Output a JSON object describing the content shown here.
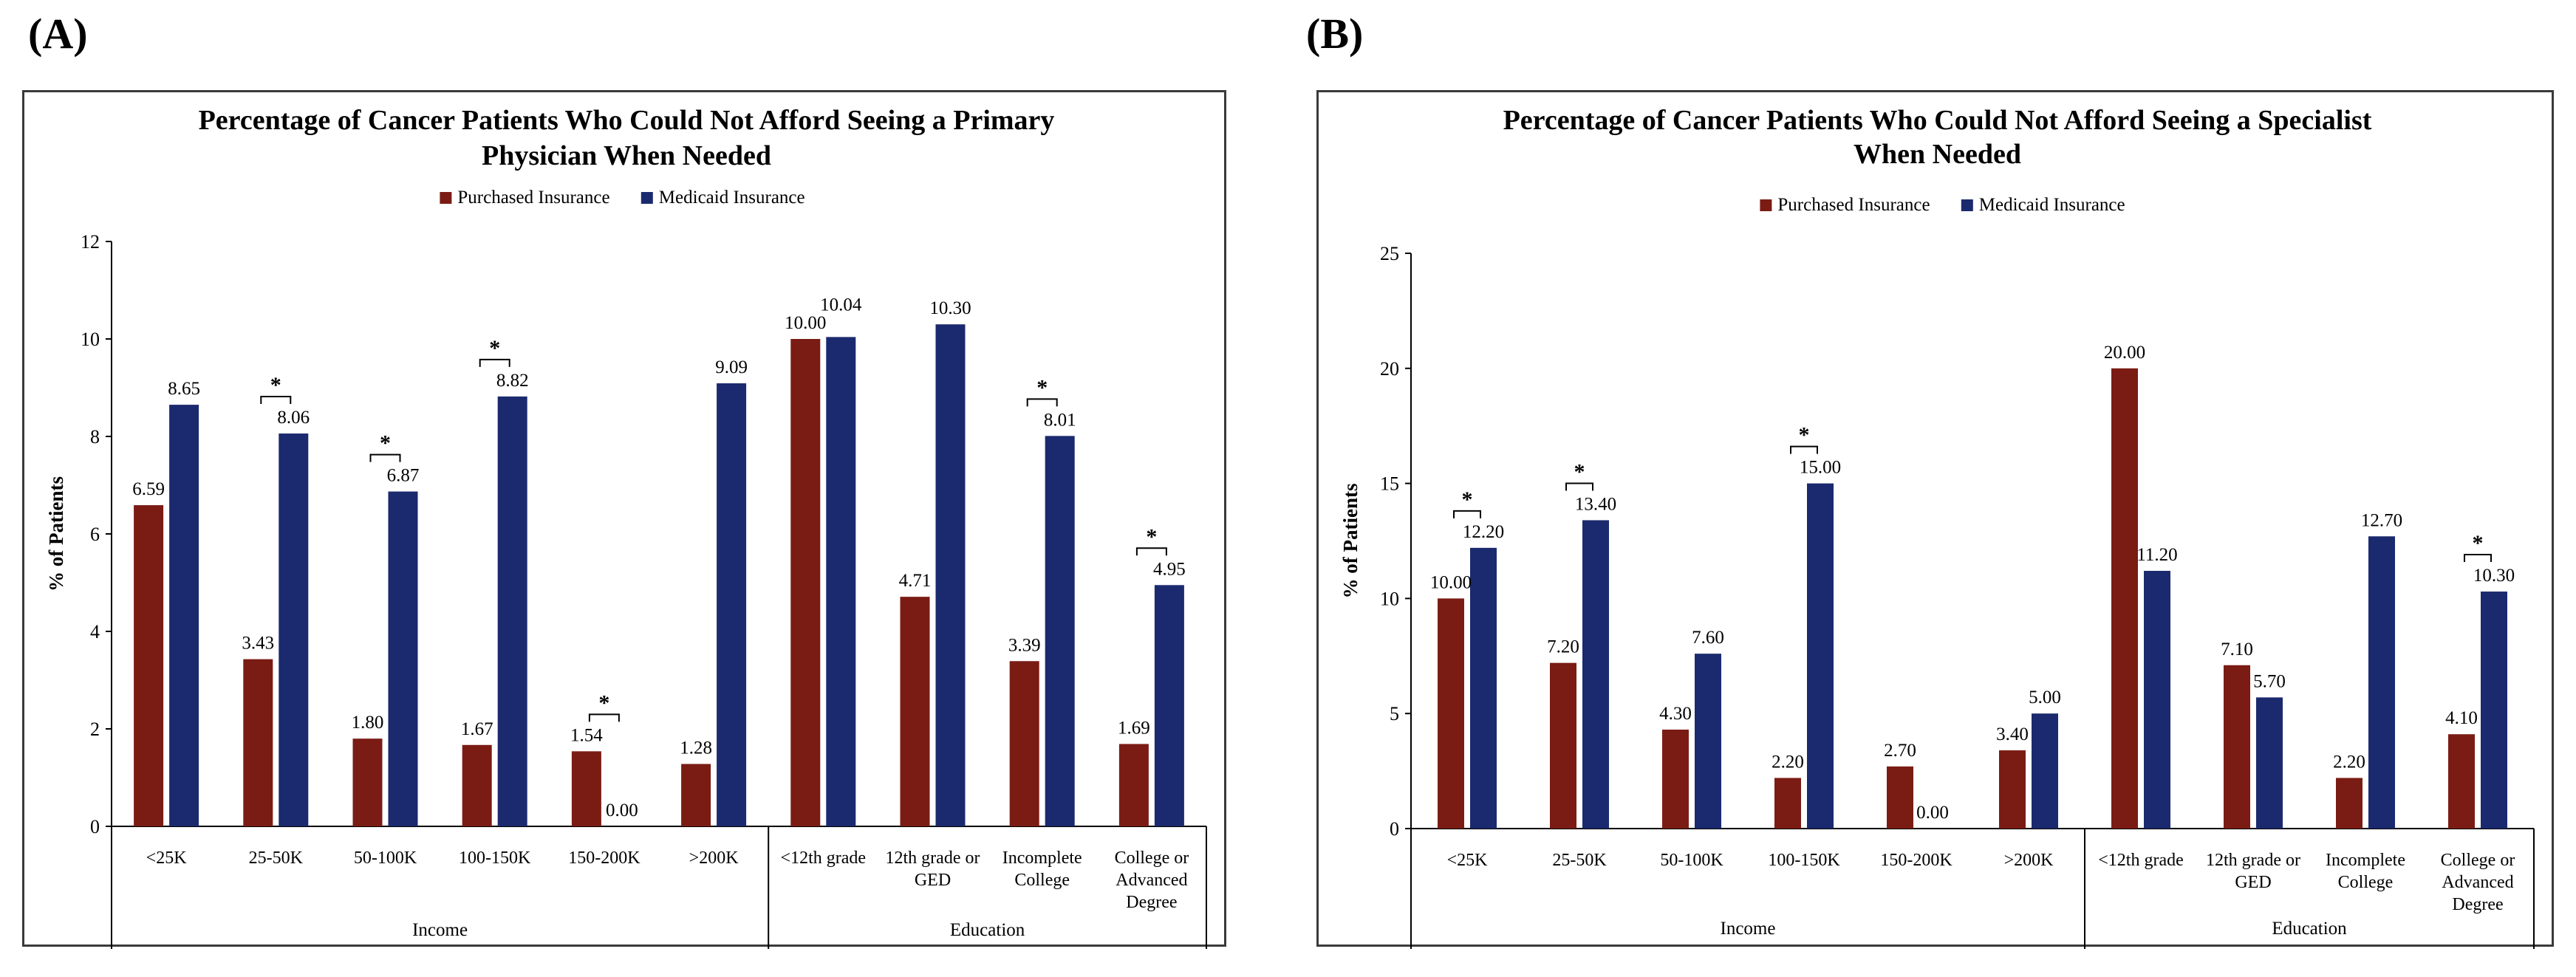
{
  "panels": [
    {
      "label": "(A)"
    },
    {
      "label": "(B)"
    }
  ],
  "colors": {
    "purchased": "#7a1c14",
    "medicaid": "#1b2a6e",
    "axis": "#000000"
  },
  "chart_data": [
    {
      "type": "bar",
      "panel": "(A)",
      "title": [
        "Percentage of Cancer Patients Who Could Not Afford Seeing a Primary",
        "Physician When Needed"
      ],
      "ylabel": "% of Patients",
      "ylim": [
        0,
        12
      ],
      "yticks": [
        0,
        2,
        4,
        6,
        8,
        10,
        12
      ],
      "categories": [
        "<25K",
        "25-50K",
        "50-100K",
        "100-150K",
        "150-200K",
        ">200K",
        "<12th grade",
        "12th grade or GED",
        "Incomplete College",
        "College or Advanced Degree"
      ],
      "category_lines": [
        [
          "<25K"
        ],
        [
          "25-50K"
        ],
        [
          "50-100K"
        ],
        [
          "100-150K"
        ],
        [
          "150-200K"
        ],
        [
          ">200K"
        ],
        [
          "<12th grade"
        ],
        [
          "12th grade or",
          "GED"
        ],
        [
          "Incomplete",
          "College"
        ],
        [
          "College or",
          "Advanced",
          "Degree"
        ]
      ],
      "groups": [
        {
          "name": "Income",
          "count": 6
        },
        {
          "name": "Education",
          "count": 4
        }
      ],
      "series": [
        {
          "name": "Purchased Insurance",
          "values": [
            6.59,
            3.43,
            1.8,
            1.67,
            1.54,
            1.28,
            10.0,
            4.71,
            3.39,
            1.69
          ],
          "labels": [
            "6.59",
            "3.43",
            "1.80",
            "1.67",
            "1.54",
            "1.28",
            "10.00",
            "4.71",
            "3.39",
            "1.69"
          ]
        },
        {
          "name": "Medicaid Insurance",
          "values": [
            8.65,
            8.06,
            6.87,
            8.82,
            0.0,
            9.09,
            10.04,
            10.3,
            8.01,
            4.95
          ],
          "labels": [
            "8.65",
            "8.06",
            "6.87",
            "8.82",
            "0.00",
            "9.09",
            "10.04",
            "10.30",
            "8.01",
            "4.95"
          ]
        }
      ],
      "significant": [
        false,
        true,
        true,
        true,
        true,
        false,
        false,
        false,
        true,
        true
      ],
      "significance_marker": "*"
    },
    {
      "type": "bar",
      "panel": "(B)",
      "title": [
        "Percentage of Cancer Patients Who Could Not Afford Seeing a Specialist",
        "When Needed"
      ],
      "ylabel": "% of Patients",
      "ylim": [
        0,
        25
      ],
      "yticks": [
        0,
        5,
        10,
        15,
        20,
        25
      ],
      "categories": [
        "<25K",
        "25-50K",
        "50-100K",
        "100-150K",
        "150-200K",
        ">200K",
        "<12th grade",
        "12th grade or GED",
        "Incomplete College",
        "College or Advanced Degree"
      ],
      "category_lines": [
        [
          "<25K"
        ],
        [
          "25-50K"
        ],
        [
          "50-100K"
        ],
        [
          "100-150K"
        ],
        [
          "150-200K"
        ],
        [
          ">200K"
        ],
        [
          "<12th grade"
        ],
        [
          "12th grade or",
          "GED"
        ],
        [
          "Incomplete",
          "College"
        ],
        [
          "College or",
          "Advanced",
          "Degree"
        ]
      ],
      "groups": [
        {
          "name": "Income",
          "count": 6
        },
        {
          "name": "Education",
          "count": 4
        }
      ],
      "series": [
        {
          "name": "Purchased Insurance",
          "values": [
            10.0,
            7.2,
            4.3,
            2.2,
            2.7,
            3.4,
            20.0,
            7.1,
            2.2,
            4.1
          ],
          "labels": [
            "10.00",
            "7.20",
            "4.30",
            "2.20",
            "2.70",
            "3.40",
            "20.00",
            "7.10",
            "2.20",
            "4.10"
          ]
        },
        {
          "name": "Medicaid Insurance",
          "values": [
            12.2,
            13.4,
            7.6,
            15.0,
            0.0,
            5.0,
            11.2,
            5.7,
            12.7,
            10.3
          ],
          "labels": [
            "12.20",
            "13.40",
            "7.60",
            "15.00",
            "0.00",
            "5.00",
            "11.20",
            "5.70",
            "12.70",
            "10.30"
          ]
        }
      ],
      "significant": [
        true,
        true,
        false,
        true,
        false,
        false,
        false,
        false,
        false,
        true
      ],
      "significance_marker": "*"
    }
  ]
}
